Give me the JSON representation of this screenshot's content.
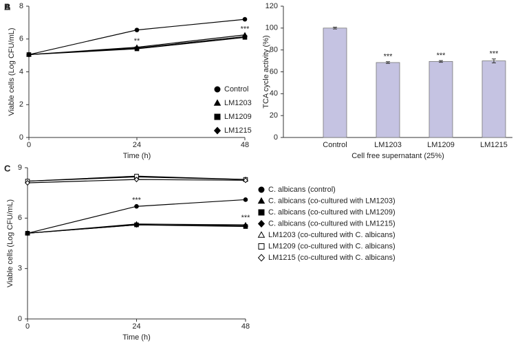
{
  "chart_data": [
    {
      "type": "line",
      "panel": "A",
      "x_label": "Time (h)",
      "y_label": "Viable cells (Log CFU/mL)",
      "x": [
        0,
        24,
        48
      ],
      "xlim": [
        0,
        48
      ],
      "xticks": [
        0,
        24,
        48
      ],
      "ylim": [
        0,
        8
      ],
      "yticks": [
        0,
        2,
        4,
        6,
        8
      ],
      "legend": "lower right",
      "series": [
        {
          "name": "Control",
          "color": "#000000",
          "marker": "circle",
          "filled": true,
          "values": [
            5.05,
            6.55,
            7.2
          ]
        },
        {
          "name": "LM1203",
          "color": "#000000",
          "marker": "triangle",
          "filled": true,
          "values": [
            5.05,
            5.5,
            6.25
          ]
        },
        {
          "name": "LM1209",
          "color": "#000000",
          "marker": "square",
          "filled": true,
          "values": [
            5.05,
            5.4,
            6.1
          ]
        },
        {
          "name": "LM1215",
          "color": "#000000",
          "marker": "diamond",
          "filled": true,
          "values": [
            5.05,
            5.45,
            6.15
          ]
        }
      ],
      "annotations": [
        {
          "text": "**",
          "x": 24,
          "y": 5.85
        },
        {
          "text": "***",
          "x": 48,
          "y": 6.6
        }
      ]
    },
    {
      "type": "bar",
      "panel": "B",
      "x_label": "Cell free supernatant (25%)",
      "y_label": "TCA cycle activity (%)",
      "categories": [
        "Control",
        "LM1203",
        "LM1209",
        "LM1215"
      ],
      "values": [
        100,
        68.5,
        69.5,
        70
      ],
      "errors": [
        0.8,
        0.8,
        0.8,
        1.8
      ],
      "color": "#c5c3e2",
      "ylim": [
        0,
        120
      ],
      "yticks": [
        0,
        20,
        40,
        60,
        80,
        100,
        120
      ],
      "annotations": [
        {
          "text": "***",
          "category": "LM1203"
        },
        {
          "text": "***",
          "category": "LM1209"
        },
        {
          "text": "***",
          "category": "LM1215"
        }
      ]
    },
    {
      "type": "line",
      "panel": "C",
      "x_label": "Time (h)",
      "y_label": "Viable cells (Log CFU/mL)",
      "x": [
        0,
        24,
        48
      ],
      "xlim": [
        0,
        48
      ],
      "xticks": [
        0,
        24,
        48
      ],
      "ylim": [
        0,
        9
      ],
      "yticks": [
        0,
        3,
        6,
        9
      ],
      "legend": "outside right",
      "series": [
        {
          "name": "C. albicans (control)",
          "color": "#000000",
          "marker": "circle",
          "filled": true,
          "values": [
            5.1,
            6.7,
            7.1
          ]
        },
        {
          "name": "C. albicans (co-cultured with LM1203)",
          "color": "#000000",
          "marker": "triangle",
          "filled": true,
          "values": [
            5.1,
            5.65,
            5.6
          ]
        },
        {
          "name": "C. albicans (co-cultured with LM1209)",
          "color": "#000000",
          "marker": "square",
          "filled": true,
          "values": [
            5.1,
            5.6,
            5.5
          ]
        },
        {
          "name": "C. albicans (co-cultured with LM1215)",
          "color": "#000000",
          "marker": "diamond",
          "filled": true,
          "values": [
            5.1,
            5.6,
            5.55
          ]
        },
        {
          "name": "LM1203 (co-cultured with C. albicans)",
          "color": "#000000",
          "marker": "triangle",
          "filled": false,
          "values": [
            8.2,
            8.45,
            8.3
          ]
        },
        {
          "name": "LM1209 (co-cultured with C. albicans)",
          "color": "#000000",
          "marker": "square",
          "filled": false,
          "values": [
            8.2,
            8.5,
            8.3
          ]
        },
        {
          "name": "LM1215 (co-cultured with C. albicans)",
          "color": "#000000",
          "marker": "diamond",
          "filled": false,
          "values": [
            8.1,
            8.3,
            8.25
          ]
        }
      ],
      "annotations": [
        {
          "text": "***",
          "x": 24,
          "y": 7.05
        },
        {
          "text": "***",
          "x": 48,
          "y": 6.0
        }
      ]
    }
  ]
}
